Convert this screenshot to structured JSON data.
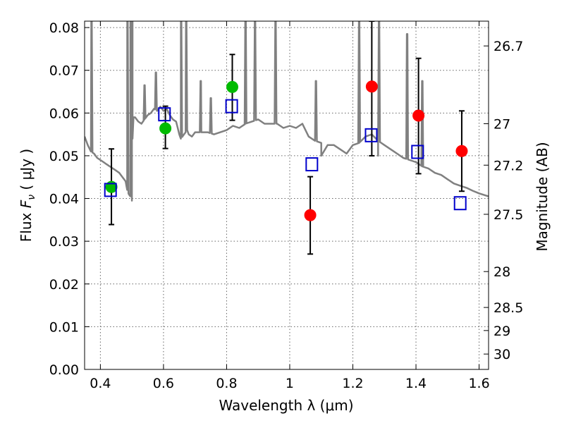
{
  "chart_data": {
    "type": "scatter",
    "xlabel": "Wavelength  λ (μm)",
    "ylabel_prefix": "Flux  ",
    "ylabel_symbol": "F",
    "ylabel_subscript": "ν",
    "ylabel_suffix": "  ( μJy )",
    "y2label": "Magnitude (AB)",
    "xlim": [
      0.35,
      1.63
    ],
    "ylim": [
      0.0,
      0.0815
    ],
    "grid": true,
    "x_ticks": [
      0.4,
      0.6,
      0.8,
      1.0,
      1.2,
      1.4,
      1.6
    ],
    "x_tick_labels": [
      "0.4",
      "0.6",
      "0.8",
      "1",
      "1.2",
      "1.4",
      "1.6"
    ],
    "y_ticks": [
      0.0,
      0.01,
      0.02,
      0.03,
      0.04,
      0.05,
      0.06,
      0.07,
      0.08
    ],
    "y_tick_labels": [
      "0.00",
      "0.01",
      "0.02",
      "0.03",
      "0.04",
      "0.05",
      "0.06",
      "0.07",
      "0.08"
    ],
    "y2_ticks": [
      {
        "label": "26.7",
        "flux": 0.0757
      },
      {
        "label": "27",
        "flux": 0.0575
      },
      {
        "label": "27.2",
        "flux": 0.0478
      },
      {
        "label": "27.5",
        "flux": 0.0363
      },
      {
        "label": "28",
        "flux": 0.0229
      },
      {
        "label": "28.5",
        "flux": 0.0145
      },
      {
        "label": "29",
        "flux": 0.0091
      },
      {
        "label": "30",
        "flux": 0.0036
      }
    ],
    "colors": {
      "model": "#808080",
      "green": "#00bb00",
      "red": "#ff0000",
      "box": "#0000cc",
      "errorbar": "#000000"
    },
    "model_sed": {
      "x": [
        0.35,
        0.36,
        0.37,
        0.38,
        0.39,
        0.4,
        0.41,
        0.42,
        0.43,
        0.44,
        0.45,
        0.46,
        0.47,
        0.475,
        0.48,
        0.485,
        0.49,
        0.495,
        0.5,
        0.502,
        0.505,
        0.51,
        0.52,
        0.53,
        0.54,
        0.55,
        0.56,
        0.57,
        0.58,
        0.59,
        0.6,
        0.61,
        0.62,
        0.63,
        0.64,
        0.645,
        0.65,
        0.655,
        0.66,
        0.665,
        0.67,
        0.675,
        0.68,
        0.69,
        0.7,
        0.72,
        0.74,
        0.76,
        0.78,
        0.8,
        0.82,
        0.84,
        0.86,
        0.88,
        0.9,
        0.92,
        0.94,
        0.96,
        0.98,
        1.0,
        1.02,
        1.04,
        1.06,
        1.08,
        1.1,
        1.12,
        1.14,
        1.16,
        1.18,
        1.2,
        1.22,
        1.24,
        1.26,
        1.28,
        1.3,
        1.32,
        1.34,
        1.36,
        1.38,
        1.4,
        1.42,
        1.44,
        1.46,
        1.48,
        1.5,
        1.52,
        1.54,
        1.56,
        1.58,
        1.6,
        1.63
      ],
      "y": [
        0.0545,
        0.0525,
        0.051,
        0.0505,
        0.0495,
        0.049,
        0.0485,
        0.048,
        0.0475,
        0.047,
        0.0465,
        0.046,
        0.045,
        0.0445,
        0.044,
        0.042,
        0.041,
        0.0405,
        0.0425,
        0.054,
        0.059,
        0.059,
        0.058,
        0.0575,
        0.0585,
        0.0595,
        0.06,
        0.061,
        0.0605,
        0.0615,
        0.0605,
        0.061,
        0.0595,
        0.0585,
        0.058,
        0.0565,
        0.055,
        0.054,
        0.0545,
        0.055,
        0.0555,
        0.056,
        0.055,
        0.0545,
        0.0555,
        0.0555,
        0.0555,
        0.055,
        0.0555,
        0.056,
        0.057,
        0.0565,
        0.0575,
        0.058,
        0.0585,
        0.0575,
        0.0575,
        0.0575,
        0.0565,
        0.057,
        0.0565,
        0.0575,
        0.0545,
        0.0535,
        0.053,
        0.0525,
        0.0525,
        0.0515,
        0.0505,
        0.0525,
        0.053,
        0.0545,
        0.055,
        0.0535,
        0.0525,
        0.0515,
        0.0505,
        0.0495,
        0.049,
        0.0485,
        0.0475,
        0.047,
        0.046,
        0.0455,
        0.0445,
        0.0435,
        0.043,
        0.0425,
        0.0418,
        0.0412,
        0.0405
      ]
    },
    "emission_lines": [
      {
        "x": 0.372,
        "peak": 0.0815
      },
      {
        "x": 0.486,
        "peak": 0.0815
      },
      {
        "x": 0.496,
        "peak": 0.0815
      },
      {
        "x": 0.501,
        "peak": 0.0815
      },
      {
        "x": 0.54,
        "peak": 0.0665
      },
      {
        "x": 0.576,
        "peak": 0.0695
      },
      {
        "x": 0.656,
        "peak": 0.0815
      },
      {
        "x": 0.672,
        "peak": 0.0815
      },
      {
        "x": 0.718,
        "peak": 0.0675
      },
      {
        "x": 0.75,
        "peak": 0.0635
      },
      {
        "x": 0.86,
        "peak": 0.0815
      },
      {
        "x": 0.89,
        "peak": 0.0815
      },
      {
        "x": 0.955,
        "peak": 0.0815
      },
      {
        "x": 1.083,
        "peak": 0.0675
      },
      {
        "x": 1.22,
        "peak": 0.0815
      },
      {
        "x": 1.283,
        "peak": 0.0815
      },
      {
        "x": 1.372,
        "peak": 0.0785
      },
      {
        "x": 1.42,
        "peak": 0.0675
      }
    ],
    "model_dips": [
      {
        "x": 0.5,
        "y": 0.0395
      },
      {
        "x": 1.1,
        "y": 0.05
      },
      {
        "x": 1.28,
        "y": 0.05
      }
    ],
    "series": [
      {
        "marker": "circle",
        "color": "green",
        "x": [
          0.435,
          0.606,
          0.818
        ],
        "y": [
          0.0427,
          0.0564,
          0.0661
        ],
        "yerr_low": [
          0.0088,
          0.0047,
          0.0078
        ],
        "yerr_high": [
          0.0089,
          0.0052,
          0.0076
        ]
      },
      {
        "marker": "circle",
        "color": "red",
        "x": [
          1.065,
          1.26,
          1.408,
          1.545
        ],
        "y": [
          0.0361,
          0.0662,
          0.0594,
          0.0511
        ],
        "yerr_low": [
          0.0091,
          0.0162,
          0.0136,
          0.0094
        ],
        "yerr_high": [
          0.009,
          0.0153,
          0.0134,
          0.0094
        ]
      },
      {
        "marker": "square",
        "color": "box",
        "x": [
          0.432,
          0.603,
          0.816,
          1.07,
          1.258,
          1.405,
          1.54
        ],
        "y": [
          0.042,
          0.0597,
          0.0616,
          0.048,
          0.0548,
          0.0509,
          0.0389
        ]
      }
    ]
  }
}
